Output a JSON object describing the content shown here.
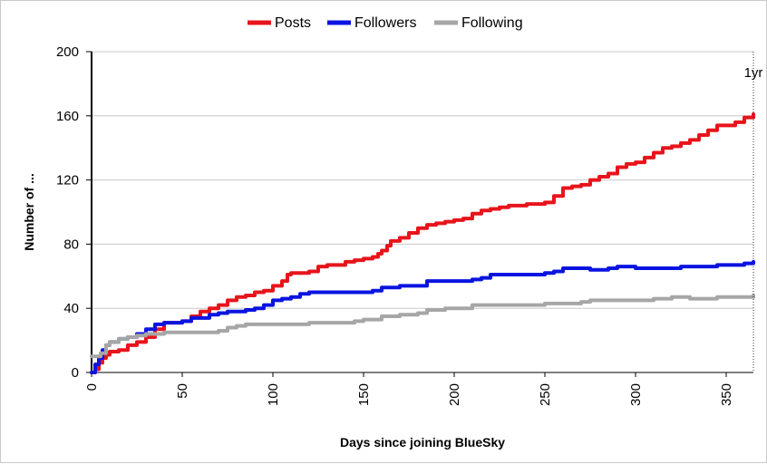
{
  "chart_data": {
    "type": "line",
    "title": "",
    "xlabel": "Days since joining BlueSky",
    "ylabel": "Number of ...",
    "xlim": [
      0,
      365
    ],
    "ylim": [
      0,
      200
    ],
    "x_ticks": [
      0,
      50,
      100,
      150,
      200,
      250,
      300,
      350
    ],
    "y_ticks": [
      0,
      40,
      80,
      120,
      160,
      200
    ],
    "grid": "horizontal",
    "legend_position": "top",
    "annotation": {
      "text": "1yr",
      "x": 365
    },
    "series": [
      {
        "name": "Posts",
        "color": "#e8141b",
        "points": [
          [
            0,
            0
          ],
          [
            2,
            2
          ],
          [
            4,
            6
          ],
          [
            6,
            9
          ],
          [
            8,
            11
          ],
          [
            10,
            13
          ],
          [
            15,
            14
          ],
          [
            20,
            17
          ],
          [
            25,
            19
          ],
          [
            30,
            22
          ],
          [
            35,
            27
          ],
          [
            40,
            31
          ],
          [
            45,
            31
          ],
          [
            50,
            32
          ],
          [
            55,
            35
          ],
          [
            60,
            38
          ],
          [
            65,
            40
          ],
          [
            70,
            42
          ],
          [
            75,
            45
          ],
          [
            80,
            47
          ],
          [
            85,
            48
          ],
          [
            90,
            50
          ],
          [
            95,
            51
          ],
          [
            100,
            54
          ],
          [
            105,
            57
          ],
          [
            108,
            61
          ],
          [
            110,
            62
          ],
          [
            120,
            63
          ],
          [
            125,
            66
          ],
          [
            130,
            67
          ],
          [
            140,
            69
          ],
          [
            145,
            70
          ],
          [
            150,
            71
          ],
          [
            155,
            72
          ],
          [
            158,
            74
          ],
          [
            160,
            76
          ],
          [
            163,
            79
          ],
          [
            165,
            82
          ],
          [
            170,
            84
          ],
          [
            175,
            87
          ],
          [
            180,
            90
          ],
          [
            185,
            92
          ],
          [
            190,
            93
          ],
          [
            195,
            94
          ],
          [
            200,
            95
          ],
          [
            205,
            96
          ],
          [
            210,
            99
          ],
          [
            215,
            101
          ],
          [
            220,
            102
          ],
          [
            225,
            103
          ],
          [
            230,
            104
          ],
          [
            240,
            105
          ],
          [
            250,
            106
          ],
          [
            255,
            110
          ],
          [
            260,
            115
          ],
          [
            265,
            116
          ],
          [
            270,
            117
          ],
          [
            275,
            120
          ],
          [
            280,
            122
          ],
          [
            285,
            124
          ],
          [
            290,
            128
          ],
          [
            295,
            130
          ],
          [
            300,
            131
          ],
          [
            305,
            134
          ],
          [
            310,
            137
          ],
          [
            315,
            140
          ],
          [
            320,
            141
          ],
          [
            325,
            143
          ],
          [
            330,
            145
          ],
          [
            335,
            148
          ],
          [
            340,
            151
          ],
          [
            345,
            154
          ],
          [
            355,
            156
          ],
          [
            360,
            159
          ],
          [
            365,
            161
          ]
        ]
      },
      {
        "name": "Followers",
        "color": "#0a14e0",
        "points": [
          [
            0,
            0
          ],
          [
            2,
            5
          ],
          [
            4,
            9
          ],
          [
            6,
            14
          ],
          [
            8,
            17
          ],
          [
            10,
            19
          ],
          [
            15,
            21
          ],
          [
            20,
            22
          ],
          [
            25,
            24
          ],
          [
            30,
            27
          ],
          [
            35,
            30
          ],
          [
            40,
            31
          ],
          [
            50,
            32
          ],
          [
            55,
            34
          ],
          [
            60,
            34
          ],
          [
            65,
            36
          ],
          [
            70,
            37
          ],
          [
            75,
            38
          ],
          [
            80,
            38
          ],
          [
            85,
            39
          ],
          [
            90,
            40
          ],
          [
            95,
            42
          ],
          [
            100,
            45
          ],
          [
            105,
            46
          ],
          [
            110,
            47
          ],
          [
            115,
            49
          ],
          [
            120,
            50
          ],
          [
            140,
            50
          ],
          [
            150,
            50
          ],
          [
            155,
            51
          ],
          [
            160,
            53
          ],
          [
            165,
            53
          ],
          [
            170,
            54
          ],
          [
            180,
            54
          ],
          [
            185,
            57
          ],
          [
            200,
            57
          ],
          [
            205,
            57
          ],
          [
            210,
            58
          ],
          [
            215,
            59
          ],
          [
            220,
            61
          ],
          [
            230,
            61
          ],
          [
            250,
            62
          ],
          [
            255,
            63
          ],
          [
            260,
            65
          ],
          [
            270,
            65
          ],
          [
            275,
            64
          ],
          [
            285,
            65
          ],
          [
            290,
            66
          ],
          [
            300,
            65
          ],
          [
            320,
            65
          ],
          [
            325,
            66
          ],
          [
            340,
            66
          ],
          [
            345,
            67
          ],
          [
            360,
            68
          ],
          [
            365,
            69
          ]
        ]
      },
      {
        "name": "Following",
        "color": "#a6a6a6",
        "points": [
          [
            0,
            10
          ],
          [
            3,
            10
          ],
          [
            5,
            12
          ],
          [
            8,
            17
          ],
          [
            10,
            19
          ],
          [
            15,
            21
          ],
          [
            20,
            22
          ],
          [
            25,
            23
          ],
          [
            30,
            24
          ],
          [
            35,
            24
          ],
          [
            40,
            25
          ],
          [
            50,
            25
          ],
          [
            60,
            25
          ],
          [
            70,
            26
          ],
          [
            75,
            28
          ],
          [
            80,
            29
          ],
          [
            85,
            30
          ],
          [
            90,
            30
          ],
          [
            100,
            30
          ],
          [
            120,
            31
          ],
          [
            140,
            31
          ],
          [
            145,
            32
          ],
          [
            150,
            33
          ],
          [
            160,
            35
          ],
          [
            170,
            36
          ],
          [
            180,
            37
          ],
          [
            185,
            39
          ],
          [
            195,
            40
          ],
          [
            200,
            40
          ],
          [
            210,
            42
          ],
          [
            230,
            42
          ],
          [
            250,
            43
          ],
          [
            260,
            43
          ],
          [
            270,
            44
          ],
          [
            275,
            45
          ],
          [
            300,
            45
          ],
          [
            310,
            46
          ],
          [
            320,
            47
          ],
          [
            330,
            46
          ],
          [
            340,
            46
          ],
          [
            345,
            47
          ],
          [
            360,
            47
          ],
          [
            365,
            48
          ]
        ]
      }
    ]
  }
}
